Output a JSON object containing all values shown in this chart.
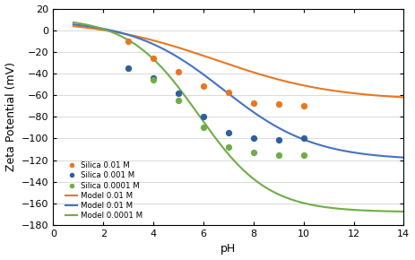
{
  "title": "",
  "xlabel": "pH",
  "ylabel": "Zeta Potential (mV)",
  "xlim": [
    0,
    14
  ],
  "ylim": [
    -180,
    20
  ],
  "yticks": [
    20,
    0,
    -20,
    -40,
    -60,
    -80,
    -100,
    -120,
    -140,
    -160,
    -180
  ],
  "xticks": [
    0,
    2,
    4,
    6,
    8,
    10,
    12,
    14
  ],
  "scatter_001_x": [
    3.0,
    4.0,
    5.0,
    6.0,
    7.0,
    8.0,
    9.0,
    10.0
  ],
  "scatter_001_y": [
    -10,
    -26,
    -38,
    -52,
    -57,
    -67,
    -68,
    -70
  ],
  "scatter_0001_x": [
    3.0,
    4.0,
    5.0,
    6.0,
    7.0,
    8.0,
    9.0,
    10.0
  ],
  "scatter_0001_y": [
    -35,
    -44,
    -58,
    -80,
    -95,
    -100,
    -101,
    -100
  ],
  "scatter_00001_x": [
    4.0,
    5.0,
    6.0,
    7.0,
    8.0,
    9.0,
    10.0
  ],
  "scatter_00001_y": [
    -46,
    -65,
    -90,
    -108,
    -113,
    -115,
    -115
  ],
  "model_001_color": "#E87722",
  "model_0001_color": "#4472C4",
  "model_00001_color": "#70AD47",
  "scatter_001_color": "#E87722",
  "scatter_0001_color": "#2E5FA3",
  "scatter_00001_color": "#70AD47",
  "model_001_params": [
    10.0,
    75.0,
    0.42,
    6.5
  ],
  "model_0001_params": [
    10.0,
    130.0,
    0.55,
    6.8
  ],
  "model_00001_params": [
    12.0,
    180.0,
    0.72,
    5.8
  ],
  "bg_color": "#FFFFFF"
}
